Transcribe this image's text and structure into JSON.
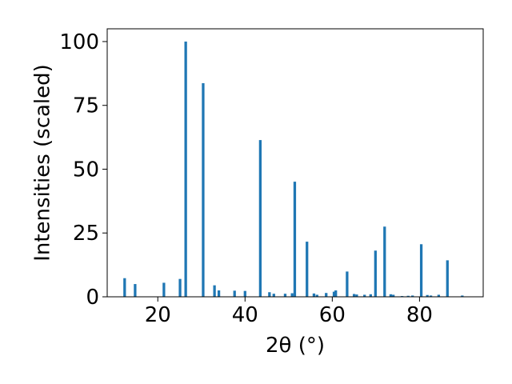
{
  "chart_data": {
    "type": "bar",
    "title": "",
    "xlabel": "2θ (°)",
    "ylabel": "Intensities (scaled)",
    "xlim": [
      8.4,
      94.6
    ],
    "ylim": [
      0,
      105
    ],
    "xticks": [
      20,
      40,
      60,
      80
    ],
    "yticks": [
      0,
      25,
      50,
      75,
      100
    ],
    "grid": false,
    "bar_color": "#1f77b4",
    "bar_width": 0.6,
    "series": [
      {
        "x": [
          12.4,
          14.8,
          21.4,
          25.1,
          26.4,
          30.4,
          33.0,
          34.0,
          37.6,
          40.0,
          43.5,
          45.6,
          46.6,
          49.2,
          50.8,
          51.4,
          54.2,
          55.8,
          56.5,
          58.6,
          60.4,
          60.8,
          63.4,
          65.0,
          65.6,
          67.4,
          68.8,
          69.9,
          72.0,
          73.4,
          74.0,
          76.0,
          77.4,
          78.4,
          80.4,
          81.8,
          82.6,
          84.4,
          86.4,
          89.8
        ],
        "values": [
          7.3,
          5.0,
          5.5,
          7.0,
          100.0,
          83.7,
          4.5,
          2.5,
          2.4,
          2.3,
          61.4,
          1.8,
          1.2,
          1.2,
          1.4,
          45.1,
          21.6,
          1.3,
          0.8,
          1.5,
          2.0,
          2.5,
          9.9,
          1.1,
          0.9,
          0.8,
          1.0,
          18.1,
          27.5,
          1.0,
          0.8,
          0.3,
          0.4,
          0.5,
          20.6,
          0.7,
          0.5,
          0.8,
          14.3,
          0.5
        ]
      }
    ]
  }
}
